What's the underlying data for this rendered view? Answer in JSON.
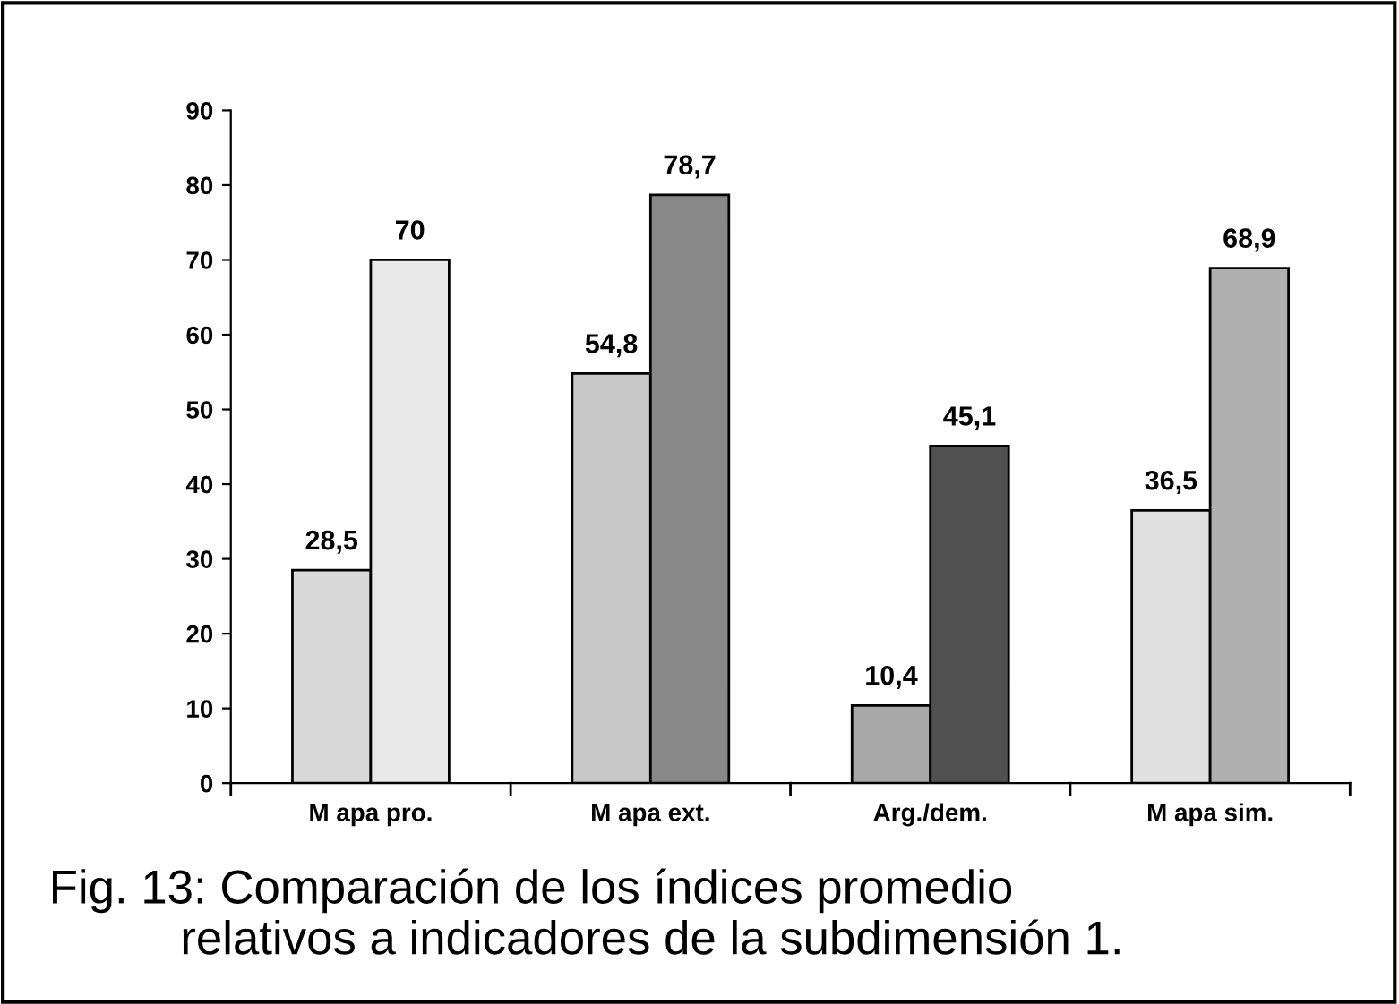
{
  "chart_data": {
    "type": "bar",
    "categories": [
      "M apa pro.",
      "M apa ext.",
      "Arg./dem.",
      "M apa sim."
    ],
    "series": [
      {
        "colors": [
          "#d8d8d8",
          "#c8c8c8",
          "#a8a8a8",
          "#e0e0e0"
        ],
        "values": [
          28.5,
          54.8,
          10.4,
          36.5
        ],
        "value_labels": [
          "28,5",
          "54,8",
          "10,4",
          "36,5"
        ]
      },
      {
        "colors": [
          "#e8e8e8",
          "#888888",
          "#505050",
          "#b0b0b0"
        ],
        "values": [
          70,
          78.7,
          45.1,
          68.9
        ],
        "value_labels": [
          "70",
          "78,7",
          "45,1",
          "68,9"
        ]
      }
    ],
    "ylim": [
      0,
      90
    ],
    "yticks": [
      0,
      10,
      20,
      30,
      40,
      50,
      60,
      70,
      80,
      90
    ],
    "grid": false,
    "annotations": [
      "Fig. 13: Comparación de los índices promedio\n          relativos a indicadores de la subdimensión 1."
    ]
  }
}
